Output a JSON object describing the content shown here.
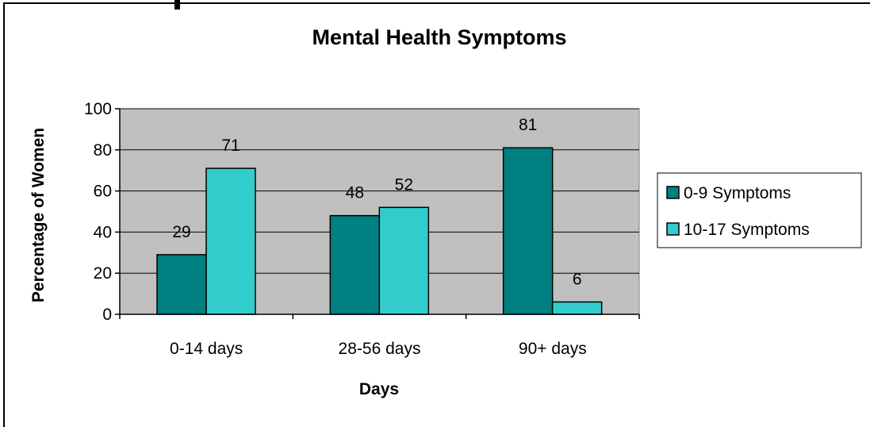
{
  "chart_data": {
    "type": "bar",
    "title": "Mental Health Symptoms",
    "xlabel": "Days",
    "ylabel": "Percentage of Women",
    "categories": [
      "0-14 days",
      "28-56 days",
      "90+ days"
    ],
    "series": [
      {
        "name": "0-9 Symptoms",
        "values": [
          29,
          48,
          81
        ],
        "color": "#008080"
      },
      {
        "name": "10-17 Symptoms",
        "values": [
          71,
          52,
          6
        ],
        "color": "#33CCCC"
      }
    ],
    "ylim": [
      0,
      100
    ],
    "yticks": [
      0,
      20,
      40,
      60,
      80,
      100
    ],
    "grid": true,
    "legend": "right",
    "plot_background": "#C0C0C0"
  }
}
